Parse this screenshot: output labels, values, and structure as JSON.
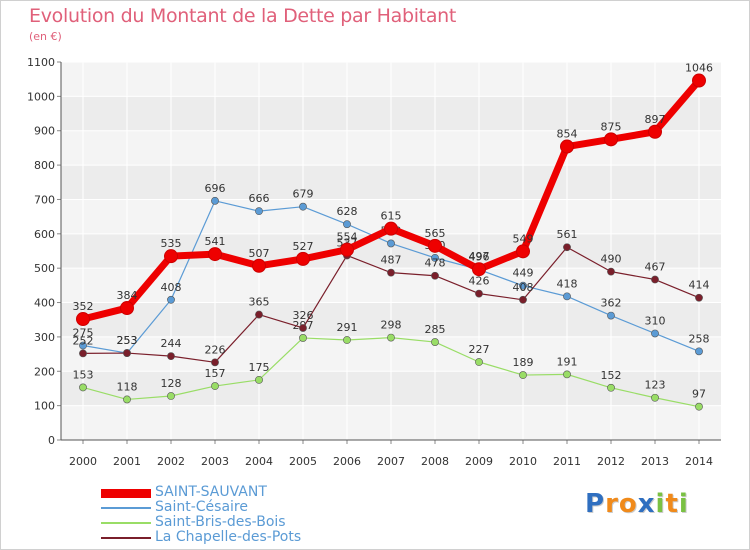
{
  "chart_data": {
    "type": "line",
    "title": "Evolution du Montant de la Dette par Habitant",
    "subtitle": "(en €)",
    "categories": [
      "2000",
      "2001",
      "2002",
      "2003",
      "2004",
      "2005",
      "2006",
      "2007",
      "2008",
      "2009",
      "2010",
      "2011",
      "2012",
      "2013",
      "2014"
    ],
    "ylim": [
      0,
      1100
    ],
    "yticks": [
      0,
      100,
      200,
      300,
      400,
      500,
      600,
      700,
      800,
      900,
      1000,
      1100
    ],
    "grid": true,
    "legend_position": "bottom-left",
    "series": [
      {
        "name": "SAINT-SAUVANT",
        "color": "#ee0000",
        "bold": true,
        "values": [
          352,
          384,
          535,
          541,
          507,
          527,
          554,
          615,
          565,
          497,
          549,
          854,
          875,
          897,
          1046
        ]
      },
      {
        "name": "Saint-Césaire",
        "color": "#5b9bd5",
        "bold": false,
        "values": [
          275,
          253,
          408,
          696,
          666,
          679,
          628,
          572,
          530,
          496,
          449,
          418,
          362,
          310,
          258
        ]
      },
      {
        "name": "Saint-Bris-des-Bois",
        "color": "#99dd66",
        "bold": false,
        "values": [
          153,
          118,
          128,
          157,
          175,
          297,
          291,
          298,
          285,
          227,
          189,
          191,
          152,
          123,
          97
        ]
      },
      {
        "name": "La Chapelle-des-Pots",
        "color": "#7a1f2b",
        "bold": false,
        "values": [
          252,
          253,
          244,
          226,
          365,
          326,
          537,
          487,
          478,
          426,
          408,
          561,
          490,
          467,
          414
        ]
      }
    ]
  },
  "legend": {
    "items": [
      {
        "label": "SAINT-SAUVANT",
        "color": "#ee0000"
      },
      {
        "label": "Saint-Césaire",
        "color": "#5b9bd5"
      },
      {
        "label": "Saint-Bris-des-Bois",
        "color": "#99dd66"
      },
      {
        "label": "La Chapelle-des-Pots",
        "color": "#7a1f2b"
      }
    ]
  },
  "logo": {
    "letters": [
      "P",
      "r",
      "o",
      "x",
      "i",
      "t",
      "i"
    ],
    "colors": [
      "#2f6fc0",
      "#f08a1a",
      "#f08a1a",
      "#2f6fc0",
      "#7ac143",
      "#f08a1a",
      "#7ac143"
    ]
  }
}
